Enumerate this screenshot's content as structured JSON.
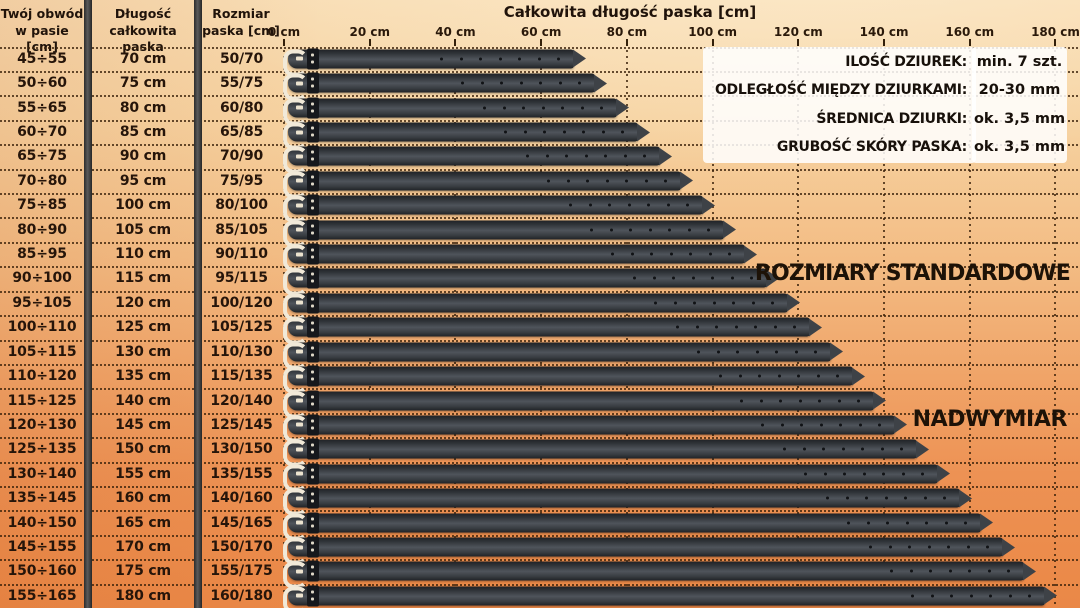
{
  "table": {
    "headers": [
      {
        "line1": "Twój obwód",
        "line2": "w pasie [cm]"
      },
      {
        "line1": "Długość",
        "line2": "całkowita paska"
      },
      {
        "line1": "Rozmiar",
        "line2": "paska [cm]"
      }
    ],
    "rows": [
      {
        "waist": "45÷55",
        "total_length": "70 cm",
        "size": "50/70",
        "length_cm": 70
      },
      {
        "waist": "50÷60",
        "total_length": "75 cm",
        "size": "55/75",
        "length_cm": 75
      },
      {
        "waist": "55÷65",
        "total_length": "80 cm",
        "size": "60/80",
        "length_cm": 80
      },
      {
        "waist": "60÷70",
        "total_length": "85 cm",
        "size": "65/85",
        "length_cm": 85
      },
      {
        "waist": "65÷75",
        "total_length": "90 cm",
        "size": "70/90",
        "length_cm": 90
      },
      {
        "waist": "70÷80",
        "total_length": "95 cm",
        "size": "75/95",
        "length_cm": 95
      },
      {
        "waist": "75÷85",
        "total_length": "100 cm",
        "size": "80/100",
        "length_cm": 100
      },
      {
        "waist": "80÷90",
        "total_length": "105 cm",
        "size": "85/105",
        "length_cm": 105
      },
      {
        "waist": "85÷95",
        "total_length": "110 cm",
        "size": "90/110",
        "length_cm": 110
      },
      {
        "waist": "90÷100",
        "total_length": "115 cm",
        "size": "95/115",
        "length_cm": 115
      },
      {
        "waist": "95÷105",
        "total_length": "120 cm",
        "size": "100/120",
        "length_cm": 120
      },
      {
        "waist": "100÷110",
        "total_length": "125 cm",
        "size": "105/125",
        "length_cm": 125
      },
      {
        "waist": "105÷115",
        "total_length": "130 cm",
        "size": "110/130",
        "length_cm": 130
      },
      {
        "waist": "110÷120",
        "total_length": "135 cm",
        "size": "115/135",
        "length_cm": 135
      },
      {
        "waist": "115÷125",
        "total_length": "140 cm",
        "size": "120/140",
        "length_cm": 140
      },
      {
        "waist": "120÷130",
        "total_length": "145 cm",
        "size": "125/145",
        "length_cm": 145
      },
      {
        "waist": "125÷135",
        "total_length": "150 cm",
        "size": "130/150",
        "length_cm": 150
      },
      {
        "waist": "130÷140",
        "total_length": "155 cm",
        "size": "135/155",
        "length_cm": 155
      },
      {
        "waist": "135÷145",
        "total_length": "160 cm",
        "size": "140/160",
        "length_cm": 160
      },
      {
        "waist": "140÷150",
        "total_length": "165 cm",
        "size": "145/165",
        "length_cm": 165
      },
      {
        "waist": "145÷155",
        "total_length": "170 cm",
        "size": "150/170",
        "length_cm": 170
      },
      {
        "waist": "150÷160",
        "total_length": "175 cm",
        "size": "155/175",
        "length_cm": 175
      },
      {
        "waist": "155÷165",
        "total_length": "180 cm",
        "size": "160/180",
        "length_cm": 180
      }
    ]
  },
  "chart": {
    "title": "Całkowita długość paska [cm]",
    "axis_ticks": [
      {
        "label": "0 cm",
        "cm": 0
      },
      {
        "label": "20 cm",
        "cm": 20
      },
      {
        "label": "40 cm",
        "cm": 40
      },
      {
        "label": "60 cm",
        "cm": 60
      },
      {
        "label": "80 cm",
        "cm": 80
      },
      {
        "label": "100 cm",
        "cm": 100
      },
      {
        "label": "120 cm",
        "cm": 120
      },
      {
        "label": "140 cm",
        "cm": 140
      },
      {
        "label": "160 cm",
        "cm": 160
      },
      {
        "label": "180 cm",
        "cm": 180
      }
    ],
    "section_labels": {
      "standard": "ROZMIARY STANDARDOWE",
      "oversize": "NADWYMIAR"
    }
  },
  "info_box": {
    "rows": [
      {
        "label": "ILOŚĆ DZIUREK:",
        "value": "min. 7 szt."
      },
      {
        "label": "ODLEGŁOŚĆ MIĘDZY DZIURKAMI:",
        "value": "20-30 mm"
      },
      {
        "label": "ŚREDNICA DZIURKI:",
        "value": "ok. 3,5 mm"
      },
      {
        "label": "GRUBOŚĆ SKÓRY PASKA:",
        "value": "ok. 3,5 mm"
      }
    ]
  },
  "colors": {
    "background_top": "#f8dcb2",
    "background_bottom": "#ea8847",
    "belt_strap": "#3e4247",
    "belt_buckle": "#f1e9d8",
    "grid_dots": "#3a210a",
    "column_divider": "#3a3a3a",
    "text": "#26150a",
    "info_panel_bg": "#ffffff"
  },
  "chart_data": {
    "type": "bar",
    "orientation": "horizontal",
    "title": "Całkowita długość paska [cm]",
    "categories": [
      "50/70",
      "55/75",
      "60/80",
      "65/85",
      "70/90",
      "75/95",
      "80/100",
      "85/105",
      "90/110",
      "95/115",
      "100/120",
      "105/125",
      "110/130",
      "115/135",
      "120/140",
      "125/145",
      "130/150",
      "135/155",
      "140/160",
      "145/165",
      "150/170",
      "155/175",
      "160/180"
    ],
    "values": [
      70,
      75,
      80,
      85,
      90,
      95,
      100,
      105,
      110,
      115,
      120,
      125,
      130,
      135,
      140,
      145,
      150,
      155,
      160,
      165,
      170,
      175,
      180
    ],
    "xlabel": "Całkowita długość paska [cm]",
    "ylabel": "Rozmiar paska [cm]",
    "xlim": [
      0,
      180
    ],
    "x_tick_step_cm": 20,
    "grid": true,
    "annotations": [
      "ROZMIARY STANDARDOWE",
      "NADWYMIAR"
    ]
  }
}
